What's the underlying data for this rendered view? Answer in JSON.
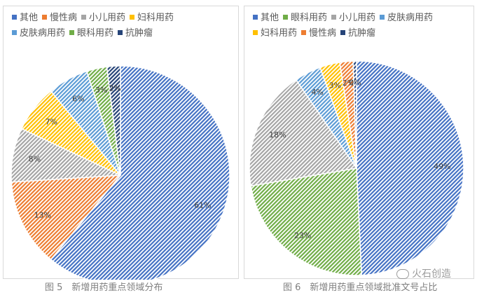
{
  "colors": {
    "其他": "#4472c4",
    "慢性病": "#ed7d31",
    "小儿用药": "#a5a5a5",
    "妇科用药": "#ffc000",
    "皮肤病用药": "#5b9bd5",
    "眼科用药": "#70ad47",
    "抗肿瘤": "#264478"
  },
  "chart_data": [
    {
      "type": "pie",
      "title": "图 5　新增用药重点领域分布",
      "categories": [
        "其他",
        "慢性病",
        "小儿用药",
        "妇科用药",
        "皮肤病用药",
        "眼科用药",
        "抗肿瘤"
      ],
      "values": [
        61,
        13,
        8,
        7,
        6,
        3,
        2
      ],
      "data_labels": [
        "61%",
        "13%",
        "8%",
        "7%",
        "6%",
        "3%",
        "2%"
      ],
      "legend_position": "top"
    },
    {
      "type": "pie",
      "title": "图 6　新增用药重点领域批准文号占比",
      "categories": [
        "其他",
        "眼科用药",
        "小儿用药",
        "皮肤病用药",
        "妇科用药",
        "慢性病",
        "抗肿瘤"
      ],
      "values": [
        49,
        23,
        18,
        4,
        3,
        2,
        0.5
      ],
      "data_labels": [
        "49%",
        "23%",
        "18%",
        "4%",
        "3%",
        "2%",
        "0%"
      ],
      "legend_position": "top"
    }
  ],
  "watermark": "火石创造"
}
